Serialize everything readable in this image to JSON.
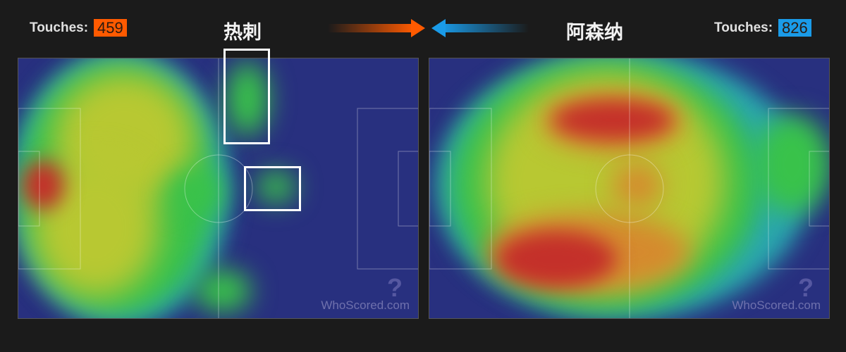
{
  "home": {
    "team": "热刺",
    "touches_label": "Touches:",
    "touches": "459",
    "color": "#ff5a00"
  },
  "away": {
    "team": "阿森纳",
    "touches_label": "Touches:",
    "touches": "826",
    "color": "#1a9be8"
  },
  "watermark": "WhoScored.com",
  "colors": {
    "background": "#1b1b1b",
    "pitch": "#28307f",
    "highlight_box": "#ffffff"
  }
}
